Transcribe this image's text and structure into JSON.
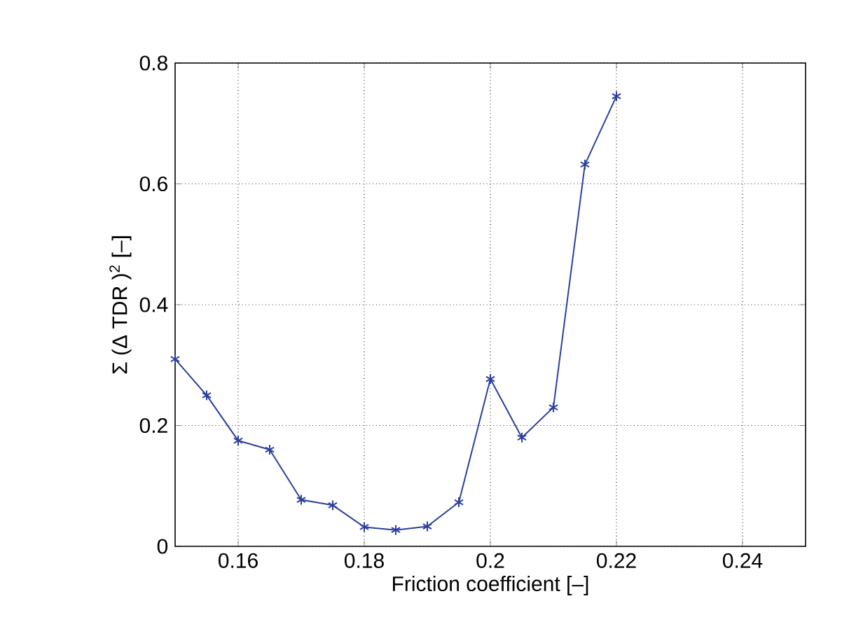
{
  "chart_data": {
    "type": "line",
    "xlabel": "Friction coefficient [–]",
    "ylabel": "Σ (Δ TDR )$^{2}$ [–]",
    "x": [
      0.15,
      0.155,
      0.16,
      0.165,
      0.17,
      0.175,
      0.18,
      0.185,
      0.19,
      0.195,
      0.2,
      0.205,
      0.21,
      0.215,
      0.22
    ],
    "series": [
      {
        "color": "#2b3f9e",
        "values": [
          0.31,
          0.25,
          0.175,
          0.16,
          0.077,
          0.068,
          0.032,
          0.027,
          0.033,
          0.073,
          0.277,
          0.18,
          0.23,
          0.632,
          0.745
        ]
      }
    ],
    "xlim": [
      0.15,
      0.25
    ],
    "ylim": [
      0,
      0.8
    ],
    "xticks": [
      0.16,
      0.18,
      0.2,
      0.22,
      0.24
    ],
    "yticks": [
      0,
      0.2,
      0.4,
      0.6,
      0.8
    ],
    "grid": true,
    "marker": "cross",
    "line_style": "solid"
  }
}
